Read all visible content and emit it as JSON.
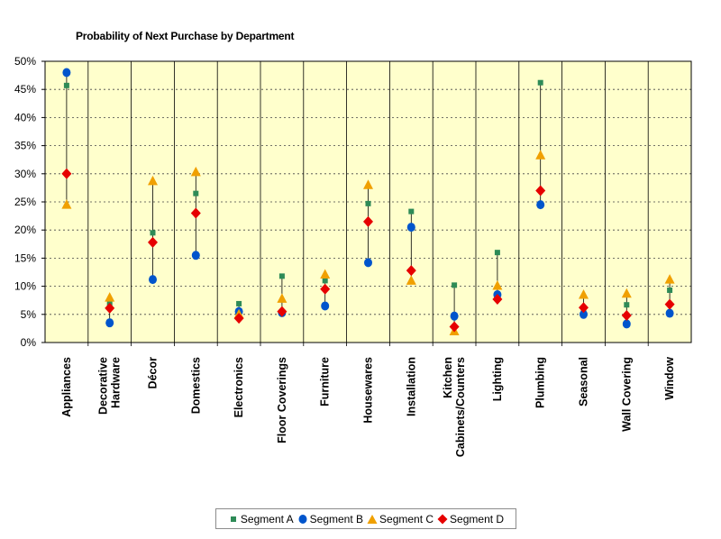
{
  "chart_data": {
    "type": "scatter",
    "title": "Probability of Next Purchase by Department",
    "xlabel": "",
    "ylabel": "",
    "ylim": [
      0,
      50
    ],
    "yticks": [
      "0%",
      "5%",
      "10%",
      "15%",
      "20%",
      "25%",
      "30%",
      "35%",
      "40%",
      "45%",
      "50%"
    ],
    "categories": [
      "Appliances",
      "Decorative Hardware",
      "Décor",
      "Domestics",
      "Electronics",
      "Floor Coverings",
      "Furniture",
      "Housewares",
      "Installation",
      "Kitchen Cabinets/Counters",
      "Lighting",
      "Plumbing",
      "Seasonal",
      "Wall Covering",
      "Window"
    ],
    "category_label_lines": [
      [
        "Appliances"
      ],
      [
        "Decorative",
        "Hardware"
      ],
      [
        "Décor"
      ],
      [
        "Domestics"
      ],
      [
        "Electronics"
      ],
      [
        "Floor Coverings"
      ],
      [
        "Furniture"
      ],
      [
        "Housewares"
      ],
      [
        "Installation"
      ],
      [
        "Kitchen",
        "Cabinets/Counters"
      ],
      [
        "Lighting"
      ],
      [
        "Plumbing"
      ],
      [
        "Seasonal"
      ],
      [
        "Wall Covering"
      ],
      [
        "Window"
      ]
    ],
    "series": [
      {
        "name": "Segment A",
        "marker": "square",
        "color": "#2e8b57",
        "values": [
          45.7,
          6.9,
          19.5,
          26.5,
          6.9,
          11.8,
          11.0,
          24.7,
          23.3,
          10.2,
          16.0,
          46.2,
          6.0,
          6.7,
          9.3
        ]
      },
      {
        "name": "Segment B",
        "marker": "circle",
        "color": "#0055cc",
        "values": [
          48.0,
          3.5,
          11.2,
          15.5,
          5.5,
          5.3,
          6.5,
          14.2,
          20.5,
          4.7,
          8.5,
          24.5,
          5.0,
          3.3,
          5.2
        ]
      },
      {
        "name": "Segment C",
        "marker": "triangle",
        "color": "#f0a000",
        "values": [
          24.5,
          8.0,
          28.7,
          30.3,
          5.0,
          7.8,
          12.1,
          28.0,
          11.0,
          2.0,
          10.1,
          33.3,
          8.5,
          8.7,
          11.2
        ]
      },
      {
        "name": "Segment D",
        "marker": "diamond",
        "color": "#e60000",
        "values": [
          30.0,
          6.1,
          17.8,
          23.0,
          4.3,
          5.5,
          9.5,
          21.5,
          12.8,
          2.8,
          7.7,
          27.0,
          6.2,
          4.8,
          6.8
        ]
      }
    ],
    "grid": true,
    "legend_position": "bottom",
    "plot_background": "#ffffcc"
  }
}
